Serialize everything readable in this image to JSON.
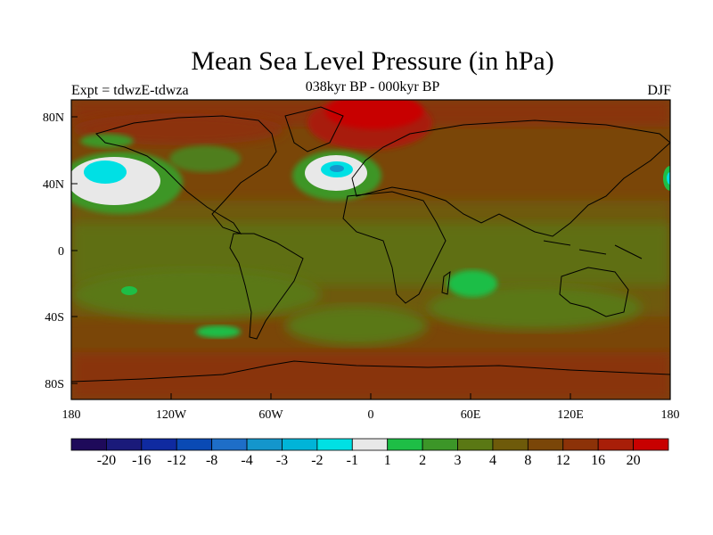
{
  "title": "Mean Sea Level Pressure (in hPa)",
  "experiment": "Expt = tdwzE-tdwza",
  "period": "038kyr BP - 000kyr BP",
  "season": "DJF",
  "lat_ticks": [
    "80N",
    "40N",
    "0",
    "40S",
    "80S"
  ],
  "lon_ticks": [
    "180",
    "120W",
    "60W",
    "0",
    "60E",
    "120E",
    "180"
  ],
  "colorbar": {
    "colors": [
      "#1e0a5a",
      "#1a1a7a",
      "#0f2aa0",
      "#0a4ab4",
      "#1e6ec8",
      "#1496cc",
      "#00b4d8",
      "#00e0e4",
      "#e8e8e8",
      "#1ebe46",
      "#3c9628",
      "#5a7814",
      "#6e5a0a",
      "#7a4608",
      "#8c3208",
      "#a81e08",
      "#c80000"
    ],
    "labels": [
      "-20",
      "-16",
      "-12",
      "-8",
      "-4",
      "-3",
      "-2",
      "-1",
      "1",
      "2",
      "3",
      "4",
      "8",
      "12",
      "16",
      "20"
    ]
  },
  "colors": {
    "ocean_base": "#7a4608",
    "land_base": "#6e5a0a",
    "coast": "#000000"
  }
}
